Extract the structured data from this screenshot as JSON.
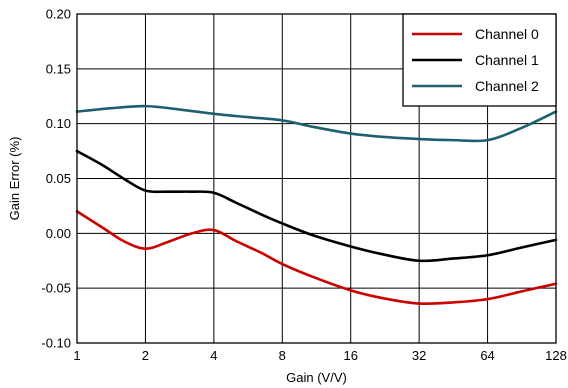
{
  "chart_data": {
    "type": "line",
    "title": "",
    "xlabel": "Gain (V/V)",
    "ylabel": "Gain Error (%)",
    "x_scale": "log2",
    "x": [
      1,
      2,
      4,
      8,
      16,
      32,
      64,
      128
    ],
    "x_tick_labels": [
      "1",
      "2",
      "4",
      "8",
      "16",
      "32",
      "64",
      "128"
    ],
    "y_ticks": [
      -0.1,
      -0.05,
      0.0,
      0.05,
      0.1,
      0.15,
      0.2
    ],
    "y_tick_labels": [
      "-0.10",
      "-0.05",
      "0.00",
      "0.05",
      "0.10",
      "0.15",
      "0.20"
    ],
    "xlim": [
      1,
      128
    ],
    "ylim": [
      -0.1,
      0.2
    ],
    "grid": true,
    "legend_position": "top-right",
    "series": [
      {
        "name": "Channel 0",
        "color": "#cc0000",
        "points": [
          [
            1,
            0.02
          ],
          [
            1.3,
            0.005
          ],
          [
            1.6,
            -0.007
          ],
          [
            2,
            -0.014
          ],
          [
            2.5,
            -0.008
          ],
          [
            3.2,
            0.0
          ],
          [
            4,
            0.003
          ],
          [
            5,
            -0.007
          ],
          [
            6.5,
            -0.018
          ],
          [
            8,
            -0.028
          ],
          [
            11,
            -0.04
          ],
          [
            16,
            -0.052
          ],
          [
            22,
            -0.059
          ],
          [
            32,
            -0.064
          ],
          [
            45,
            -0.063
          ],
          [
            64,
            -0.06
          ],
          [
            90,
            -0.053
          ],
          [
            128,
            -0.046
          ]
        ]
      },
      {
        "name": "Channel 1",
        "color": "#000000",
        "points": [
          [
            1,
            0.075
          ],
          [
            1.3,
            0.062
          ],
          [
            1.6,
            0.05
          ],
          [
            2,
            0.039
          ],
          [
            2.5,
            0.038
          ],
          [
            3.2,
            0.038
          ],
          [
            4,
            0.037
          ],
          [
            5,
            0.028
          ],
          [
            6.5,
            0.017
          ],
          [
            8,
            0.009
          ],
          [
            11,
            -0.002
          ],
          [
            16,
            -0.012
          ],
          [
            22,
            -0.019
          ],
          [
            32,
            -0.025
          ],
          [
            45,
            -0.023
          ],
          [
            64,
            -0.02
          ],
          [
            90,
            -0.013
          ],
          [
            128,
            -0.006
          ]
        ]
      },
      {
        "name": "Channel 2",
        "color": "#1f5f6f",
        "points": [
          [
            1,
            0.111
          ],
          [
            1.4,
            0.114
          ],
          [
            2,
            0.116
          ],
          [
            2.8,
            0.113
          ],
          [
            4,
            0.109
          ],
          [
            5.6,
            0.106
          ],
          [
            8,
            0.103
          ],
          [
            11,
            0.097
          ],
          [
            16,
            0.091
          ],
          [
            22,
            0.088
          ],
          [
            32,
            0.086
          ],
          [
            45,
            0.085
          ],
          [
            64,
            0.085
          ],
          [
            90,
            0.096
          ],
          [
            128,
            0.111
          ]
        ]
      }
    ]
  }
}
